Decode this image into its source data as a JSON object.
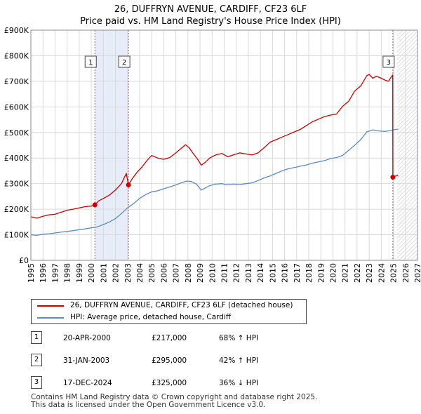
{
  "title_line1": "26, DUFFRYN AVENUE, CARDIFF, CF23 6LF",
  "title_line2": "Price paid vs. HM Land Registry's House Price Index (HPI)",
  "chart_data": {
    "type": "line",
    "title": "26, DUFFRYN AVENUE, CARDIFF, CF23 6LF — Price paid vs. HM Land Registry's House Price Index (HPI)",
    "xlim": [
      1995,
      2027
    ],
    "ylim": [
      0,
      900000
    ],
    "y_ticks": [
      0,
      100000,
      200000,
      300000,
      400000,
      500000,
      600000,
      700000,
      800000,
      900000
    ],
    "y_tick_labels": [
      "£0",
      "£100K",
      "£200K",
      "£300K",
      "£400K",
      "£500K",
      "£600K",
      "£700K",
      "£800K",
      "£900K"
    ],
    "x_ticks": [
      1995,
      1996,
      1997,
      1998,
      1999,
      2000,
      2001,
      2002,
      2003,
      2004,
      2005,
      2006,
      2007,
      2008,
      2009,
      2010,
      2011,
      2012,
      2013,
      2014,
      2015,
      2016,
      2017,
      2018,
      2019,
      2020,
      2021,
      2022,
      2023,
      2024,
      2025,
      2026,
      2027
    ],
    "grid": true,
    "shaded_span": [
      2000.3,
      2003.08
    ],
    "forecast_hatch_from": 2025.3,
    "series": [
      {
        "name": "26, DUFFRYN AVENUE, CARDIFF, CF23 6LF (detached house)",
        "color": "#cc0000",
        "x": [
          1995.0,
          1995.5,
          1996.0,
          1996.5,
          1997.0,
          1997.5,
          1998.0,
          1998.5,
          1999.0,
          1999.5,
          2000.0,
          2000.3,
          2000.6,
          2001.0,
          2001.5,
          2002.0,
          2002.5,
          2002.9,
          2003.08,
          2003.4,
          2003.8,
          2004.2,
          2004.6,
          2005.0,
          2005.5,
          2006.0,
          2006.5,
          2007.0,
          2007.5,
          2007.8,
          2008.1,
          2008.4,
          2008.8,
          2009.1,
          2009.4,
          2009.8,
          2010.3,
          2010.8,
          2011.3,
          2011.8,
          2012.3,
          2012.8,
          2013.3,
          2013.8,
          2014.3,
          2014.8,
          2015.3,
          2015.8,
          2016.3,
          2016.8,
          2017.3,
          2017.8,
          2018.3,
          2018.8,
          2019.3,
          2019.8,
          2020.3,
          2020.8,
          2021.3,
          2021.8,
          2022.3,
          2022.8,
          2023.0,
          2023.3,
          2023.6,
          2024.0,
          2024.3,
          2024.6,
          2024.8,
          2024.95,
          2024.96,
          2025.2,
          2025.4
        ],
        "y": [
          170000,
          165000,
          172000,
          178000,
          180000,
          188000,
          196000,
          200000,
          205000,
          210000,
          212000,
          217000,
          232000,
          242000,
          255000,
          275000,
          300000,
          340000,
          295000,
          320000,
          345000,
          365000,
          390000,
          410000,
          400000,
          395000,
          402000,
          420000,
          440000,
          452000,
          440000,
          420000,
          395000,
          372000,
          382000,
          400000,
          412000,
          418000,
          405000,
          413000,
          420000,
          416000,
          412000,
          420000,
          440000,
          462000,
          472000,
          482000,
          492000,
          502000,
          512000,
          527000,
          542000,
          552000,
          562000,
          568000,
          572000,
          602000,
          622000,
          662000,
          682000,
          722000,
          727000,
          712000,
          720000,
          712000,
          705000,
          700000,
          715000,
          725000,
          325000,
          330000,
          332000
        ]
      },
      {
        "name": "HPI: Average price, detached house, Cardiff",
        "color": "#5b8ac6",
        "x": [
          1995.0,
          1995.5,
          1996.0,
          1996.5,
          1997.0,
          1997.5,
          1998.0,
          1998.5,
          1999.0,
          1999.5,
          2000.0,
          2000.5,
          2001.0,
          2001.5,
          2002.0,
          2002.5,
          2003.0,
          2003.5,
          2004.0,
          2004.5,
          2005.0,
          2005.5,
          2006.0,
          2006.5,
          2007.0,
          2007.5,
          2007.9,
          2008.3,
          2008.7,
          2009.1,
          2009.4,
          2009.8,
          2010.3,
          2010.8,
          2011.3,
          2011.8,
          2012.3,
          2012.8,
          2013.3,
          2013.8,
          2014.3,
          2014.8,
          2015.3,
          2015.8,
          2016.3,
          2016.8,
          2017.3,
          2017.8,
          2018.3,
          2018.8,
          2019.3,
          2019.8,
          2020.3,
          2020.8,
          2021.3,
          2021.8,
          2022.3,
          2022.8,
          2023.3,
          2023.8,
          2024.3,
          2024.8,
          2025.2,
          2025.4
        ],
        "y": [
          100000,
          98000,
          102000,
          104000,
          107000,
          110000,
          113000,
          116000,
          120000,
          123000,
          127000,
          131000,
          140000,
          150000,
          163000,
          183000,
          205000,
          222000,
          242000,
          257000,
          268000,
          272000,
          280000,
          287000,
          295000,
          304000,
          310000,
          308000,
          298000,
          275000,
          282000,
          292000,
          298000,
          300000,
          295000,
          298000,
          296000,
          300000,
          303000,
          312000,
          322000,
          330000,
          340000,
          350000,
          358000,
          363000,
          368000,
          373000,
          380000,
          385000,
          390000,
          398000,
          402000,
          410000,
          430000,
          450000,
          472000,
          502000,
          510000,
          506000,
          504000,
          508000,
          512000,
          513000
        ]
      }
    ],
    "sales": [
      {
        "label": "1",
        "x": 2000.3,
        "y": 217000
      },
      {
        "label": "2",
        "x": 2003.08,
        "y": 295000
      },
      {
        "label": "3",
        "x": 2024.96,
        "y": 325000
      }
    ]
  },
  "legend": {
    "items": [
      {
        "label": "26, DUFFRYN AVENUE, CARDIFF, CF23 6LF (detached house)",
        "color": "#cc0000"
      },
      {
        "label": "HPI: Average price, detached house, Cardiff",
        "color": "#5b8ac6"
      }
    ]
  },
  "transactions": [
    {
      "num": "1",
      "date": "20-APR-2000",
      "price": "£217,000",
      "hpi": "68% ↑ HPI"
    },
    {
      "num": "2",
      "date": "31-JAN-2003",
      "price": "£295,000",
      "hpi": "42% ↑ HPI"
    },
    {
      "num": "3",
      "date": "17-DEC-2024",
      "price": "£325,000",
      "hpi": "36% ↓ HPI"
    }
  ],
  "footer": {
    "line1": "Contains HM Land Registry data © Crown copyright and database right 2025.",
    "line2": "This data is licensed under the Open Government Licence v3.0."
  }
}
